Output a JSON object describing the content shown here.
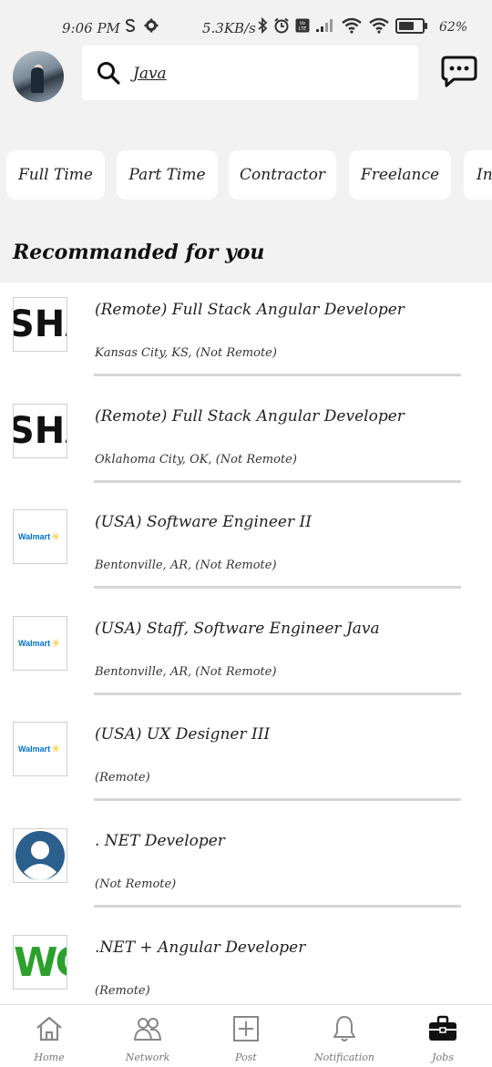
{
  "status_bar": {
    "time": "9:06 PM",
    "speed": "5.3KB/s",
    "battery": "62%"
  },
  "search": {
    "query": "Java"
  },
  "filters": [
    "Full Time",
    "Part Time",
    "Contractor",
    "Freelance",
    "In"
  ],
  "section_title": "Recommanded for you",
  "jobs": [
    {
      "title": "(Remote) Full Stack Angular Developer",
      "location": "Kansas City, KS, (Not Remote)",
      "logo": "SHA"
    },
    {
      "title": "(Remote) Full Stack Angular Developer",
      "location": "Oklahoma City, OK, (Not Remote)",
      "logo": "SHA"
    },
    {
      "title": "(USA) Software Engineer II",
      "location": "Bentonville, AR, (Not Remote)",
      "logo": "Walmart"
    },
    {
      "title": "(USA) Staff, Software Engineer Java",
      "location": "Bentonville, AR, (Not Remote)",
      "logo": "Walmart"
    },
    {
      "title": "(USA) UX Designer III",
      "location": "(Remote)",
      "logo": "Walmart"
    },
    {
      "title": ". NET Developer",
      "location": "(Not Remote)",
      "logo": ""
    },
    {
      "title": ".NET + Angular Developer",
      "location": "(Remote)",
      "logo": "WO"
    }
  ],
  "nav": {
    "home": "Home",
    "network": "Network",
    "post": "Post",
    "notification": "Notification",
    "jobs": "Jobs"
  },
  "colors": {
    "background": "#f2f2f2",
    "walmart_blue": "#0071ce",
    "walmart_spark": "#ffc220",
    "person_icon": "#2b5f8c",
    "wo_green": "#2ca02c"
  }
}
